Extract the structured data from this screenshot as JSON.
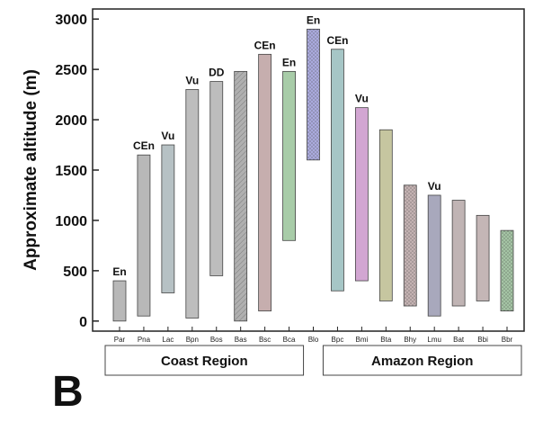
{
  "panel_label": "B",
  "chart_data": {
    "type": "bar",
    "subtype": "floating-range",
    "ylabel": "Approximate altitude (m)",
    "ylim": [
      -100,
      3100
    ],
    "yticks": [
      0,
      500,
      1000,
      1500,
      2000,
      2500,
      3000
    ],
    "grid": false,
    "categories": [
      "Par",
      "Pna",
      "Lac",
      "Bpn",
      "Bos",
      "Bas",
      "Bsc",
      "Bca",
      "Blo",
      "Bpc",
      "Bmi",
      "Bta",
      "Bhy",
      "Lmu",
      "Bat",
      "Bbi",
      "Bbr"
    ],
    "ranges": [
      {
        "category": "Par",
        "low": 0,
        "high": 400,
        "status": "En",
        "color": "#b8b8b8",
        "pattern": "solid"
      },
      {
        "category": "Pna",
        "low": 50,
        "high": 1650,
        "status": "CEn",
        "color": "#b8b8b8",
        "pattern": "solid"
      },
      {
        "category": "Lac",
        "low": 280,
        "high": 1750,
        "status": "Vu",
        "color": "#b6c1c4",
        "pattern": "solid"
      },
      {
        "category": "Bpn",
        "low": 30,
        "high": 2300,
        "status": "Vu",
        "color": "#bdbdbd",
        "pattern": "solid"
      },
      {
        "category": "Bos",
        "low": 450,
        "high": 2380,
        "status": "DD",
        "color": "#bdbdbd",
        "pattern": "solid"
      },
      {
        "category": "Bas",
        "low": 0,
        "high": 2480,
        "status": "",
        "color": "#b0b0b0",
        "pattern": "hatch"
      },
      {
        "category": "Bsc",
        "low": 100,
        "high": 2650,
        "status": "CEn",
        "color": "#c6aeae",
        "pattern": "solid"
      },
      {
        "category": "Bca",
        "low": 800,
        "high": 2480,
        "status": "En",
        "color": "#a8cca8",
        "pattern": "solid"
      },
      {
        "category": "Blo",
        "low": 1600,
        "high": 2900,
        "status": "En",
        "color": "#aaaadd",
        "pattern": "dots"
      },
      {
        "category": "Bpc",
        "low": 300,
        "high": 2700,
        "status": "CEn",
        "color": "#a6c6c6",
        "pattern": "solid"
      },
      {
        "category": "Bmi",
        "low": 400,
        "high": 2120,
        "status": "Vu",
        "color": "#d2a6d2",
        "pattern": "solid"
      },
      {
        "category": "Bta",
        "low": 200,
        "high": 1900,
        "status": "",
        "color": "#c6c6a0",
        "pattern": "solid"
      },
      {
        "category": "Bhy",
        "low": 150,
        "high": 1350,
        "status": "",
        "color": "#c4b2b2",
        "pattern": "dots"
      },
      {
        "category": "Lmu",
        "low": 50,
        "high": 1250,
        "status": "Vu",
        "color": "#a8a8bc",
        "pattern": "solid"
      },
      {
        "category": "Bat",
        "low": 150,
        "high": 1200,
        "status": "",
        "color": "#c0b4b4",
        "pattern": "solid"
      },
      {
        "category": "Bbi",
        "low": 200,
        "high": 1050,
        "status": "",
        "color": "#c4b6b6",
        "pattern": "solid"
      },
      {
        "category": "Bbr",
        "low": 100,
        "high": 900,
        "status": "",
        "color": "#a4c4a4",
        "pattern": "dots"
      }
    ],
    "groups": [
      {
        "label": "Coast Region",
        "from": 0,
        "to": 7
      },
      {
        "label": "Amazon Region",
        "from": 9,
        "to": 16
      }
    ]
  }
}
